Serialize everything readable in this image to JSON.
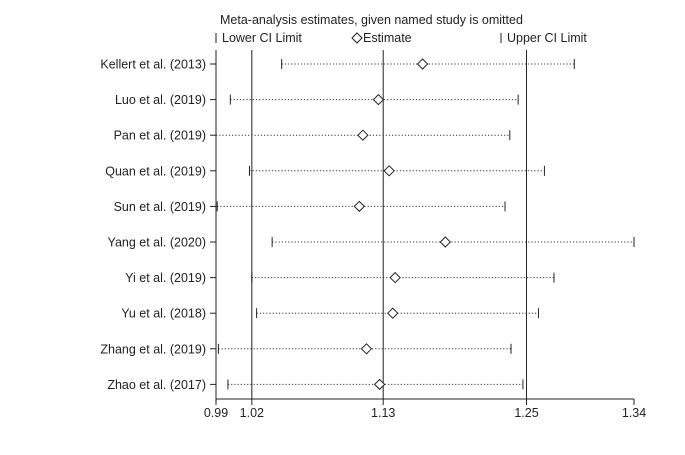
{
  "chart_data": {
    "type": "forest",
    "title": "Meta-analysis estimates, given named study is omitted",
    "legend": {
      "position": "top",
      "items": [
        {
          "key": "lower",
          "label": "Lower CI Limit"
        },
        {
          "key": "estimate",
          "label": "Estimate"
        },
        {
          "key": "upper",
          "label": "Upper CI Limit"
        }
      ]
    },
    "xlim": [
      0.99,
      1.34
    ],
    "ticks": [
      0.99,
      1.02,
      1.13,
      1.25,
      1.34
    ],
    "tick_labels": [
      "0.99",
      "1.02",
      "1.13",
      "1.25",
      "1.34"
    ],
    "reference_lines": [
      1.02,
      1.13,
      1.25
    ],
    "grid": false,
    "studies": [
      {
        "label": "Kellert et al.  (2013)",
        "lower": 1.045,
        "estimate": 1.163,
        "upper": 1.29
      },
      {
        "label": "Luo et al. (2019)",
        "lower": 1.002,
        "estimate": 1.126,
        "upper": 1.243
      },
      {
        "label": "Pan et al. (2019)",
        "lower": 0.99,
        "estimate": 1.113,
        "upper": 1.236
      },
      {
        "label": "Quan et al. (2019)",
        "lower": 1.018,
        "estimate": 1.135,
        "upper": 1.265
      },
      {
        "label": "Sun et al. (2019)",
        "lower": 0.991,
        "estimate": 1.11,
        "upper": 1.232
      },
      {
        "label": "Yang et al. (2020)",
        "lower": 1.037,
        "estimate": 1.182,
        "upper": 1.34
      },
      {
        "label": "Yi et al. (2019)",
        "lower": 1.02,
        "estimate": 1.14,
        "upper": 1.273
      },
      {
        "label": "Yu et al. (2018)",
        "lower": 1.024,
        "estimate": 1.138,
        "upper": 1.26
      },
      {
        "label": "Zhang et al. (2019)",
        "lower": 0.992,
        "estimate": 1.116,
        "upper": 1.237
      },
      {
        "label": "Zhao et al. (2017)",
        "lower": 1.0,
        "estimate": 1.127,
        "upper": 1.247
      }
    ]
  }
}
